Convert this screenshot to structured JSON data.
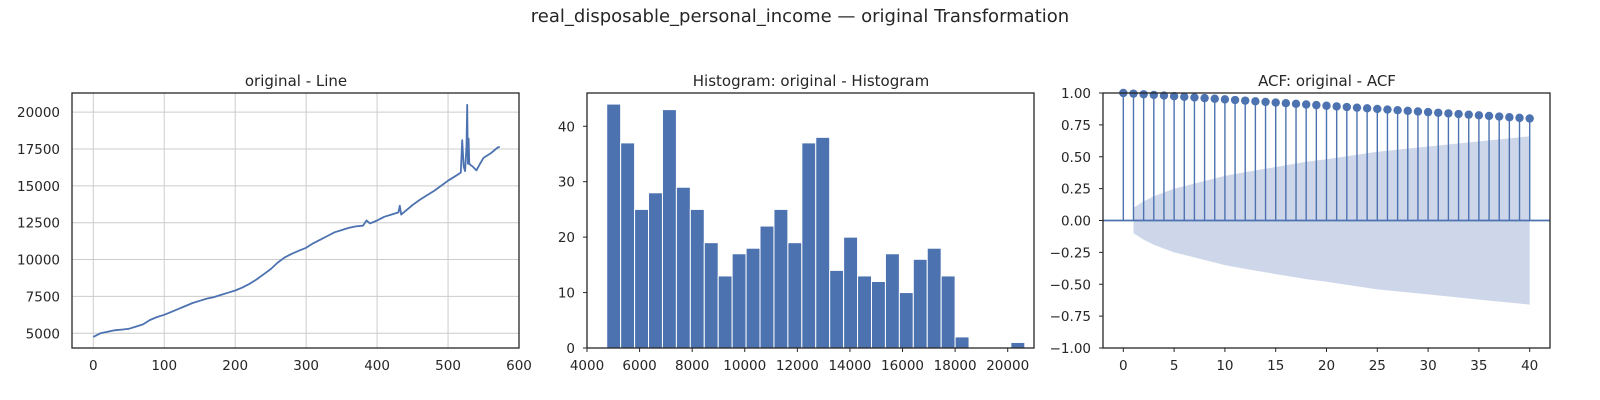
{
  "figure": {
    "suptitle": "real_disposable_personal_income — original Transformation"
  },
  "colors": {
    "primary": "#4c72b0",
    "band": "#c9d3e8",
    "grid": "#cccccc",
    "axis": "#262626"
  },
  "chart_data": [
    {
      "type": "line",
      "title": "original - Line",
      "xlabel": "",
      "ylabel": "",
      "xlim": [
        -30,
        600
      ],
      "ylim": [
        4000,
        21300
      ],
      "xticks": [
        "0",
        "100",
        "200",
        "300",
        "400",
        "500",
        "600"
      ],
      "yticks": [
        "5000",
        "7500",
        "10000",
        "12500",
        "15000",
        "17500",
        "20000"
      ],
      "grid": true,
      "series": [
        {
          "x": [
            0,
            10,
            20,
            30,
            40,
            50,
            60,
            70,
            80,
            90,
            100,
            110,
            120,
            130,
            140,
            150,
            160,
            170,
            180,
            190,
            200,
            210,
            220,
            230,
            240,
            250,
            260,
            270,
            280,
            290,
            300,
            310,
            320,
            330,
            340,
            350,
            360,
            370,
            380,
            385,
            390,
            400,
            410,
            420,
            430,
            432,
            434,
            440,
            450,
            460,
            470,
            480,
            490,
            500,
            510,
            518,
            520,
            522,
            524,
            526,
            527,
            528,
            529,
            530,
            532,
            535,
            540,
            545,
            550,
            560,
            570,
            573
          ],
          "y": [
            4750,
            5000,
            5100,
            5200,
            5250,
            5300,
            5450,
            5600,
            5900,
            6100,
            6250,
            6450,
            6650,
            6850,
            7050,
            7200,
            7350,
            7450,
            7600,
            7750,
            7900,
            8100,
            8350,
            8650,
            9000,
            9350,
            9800,
            10150,
            10400,
            10600,
            10800,
            11100,
            11350,
            11600,
            11850,
            12000,
            12150,
            12250,
            12300,
            12650,
            12450,
            12650,
            12900,
            13050,
            13200,
            13650,
            13050,
            13300,
            13700,
            14050,
            14350,
            14650,
            15000,
            15350,
            15650,
            15900,
            18100,
            16300,
            16000,
            17700,
            20500,
            16500,
            18200,
            16500,
            16400,
            16300,
            16050,
            16500,
            16900,
            17200,
            17600,
            17650
          ]
        }
      ]
    },
    {
      "type": "bar",
      "title": "Histogram: original - Histogram",
      "xlabel": "",
      "ylabel": "",
      "xlim": [
        4000,
        21000
      ],
      "ylim": [
        0,
        46
      ],
      "xticks": [
        "4000",
        "6000",
        "8000",
        "10000",
        "12000",
        "14000",
        "16000",
        "18000",
        "20000"
      ],
      "yticks": [
        "0",
        "10",
        "20",
        "30",
        "40"
      ],
      "grid": false,
      "bins": {
        "start": 4750,
        "width": 530
      },
      "values": [
        44,
        37,
        25,
        28,
        43,
        29,
        25,
        19,
        13,
        17,
        18,
        22,
        25,
        19,
        37,
        38,
        14,
        20,
        13,
        12,
        17,
        10,
        16,
        18,
        13,
        2,
        0,
        0,
        0,
        1
      ]
    },
    {
      "type": "stem",
      "title": "ACF: original - ACF",
      "xlabel": "",
      "ylabel": "",
      "xlim": [
        -2,
        42
      ],
      "ylim": [
        -1.0,
        1.0
      ],
      "xticks": [
        "0",
        "5",
        "10",
        "15",
        "20",
        "25",
        "30",
        "35",
        "40"
      ],
      "yticks": [
        "1.00",
        "0.75",
        "0.50",
        "0.25",
        "0.00",
        "−0.25",
        "−0.50",
        "−0.75",
        "−1.00"
      ],
      "grid": false,
      "lags": [
        0,
        1,
        2,
        3,
        4,
        5,
        6,
        7,
        8,
        9,
        10,
        11,
        12,
        13,
        14,
        15,
        16,
        17,
        18,
        19,
        20,
        21,
        22,
        23,
        24,
        25,
        26,
        27,
        28,
        29,
        30,
        31,
        32,
        33,
        34,
        35,
        36,
        37,
        38,
        39,
        40
      ],
      "values": [
        1.0,
        0.995,
        0.99,
        0.985,
        0.98,
        0.975,
        0.97,
        0.965,
        0.96,
        0.955,
        0.95,
        0.945,
        0.94,
        0.935,
        0.93,
        0.925,
        0.92,
        0.915,
        0.91,
        0.905,
        0.9,
        0.895,
        0.89,
        0.885,
        0.88,
        0.875,
        0.87,
        0.865,
        0.86,
        0.855,
        0.85,
        0.845,
        0.84,
        0.835,
        0.83,
        0.825,
        0.82,
        0.815,
        0.81,
        0.805,
        0.8
      ],
      "confidence_band": {
        "lags": [
          1,
          2,
          3,
          4,
          5,
          6,
          8,
          10,
          12,
          15,
          18,
          20,
          25,
          30,
          35,
          40
        ],
        "half_width": [
          0.1,
          0.15,
          0.19,
          0.22,
          0.25,
          0.27,
          0.31,
          0.35,
          0.38,
          0.42,
          0.46,
          0.48,
          0.54,
          0.58,
          0.62,
          0.66
        ]
      }
    }
  ]
}
